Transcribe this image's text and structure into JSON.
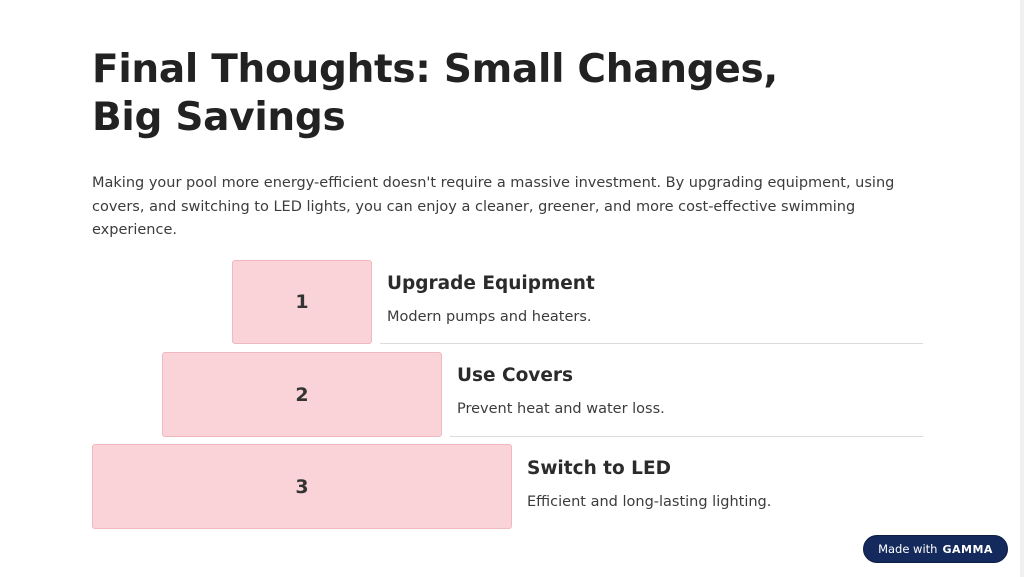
{
  "slide": {
    "title": "Final Thoughts: Small Changes, Big Savings",
    "intro": "Making your pool more energy-efficient doesn't require a massive investment. By upgrading equipment, using covers, and switching to LED lights, you can enjoy a cleaner, greener, and more cost-effective swimming experience.",
    "steps": [
      {
        "number": "1",
        "title": "Upgrade Equipment",
        "description": "Modern pumps and heaters."
      },
      {
        "number": "2",
        "title": "Use Covers",
        "description": "Prevent heat and water loss."
      },
      {
        "number": "3",
        "title": "Switch to LED",
        "description": "Efficient and long-lasting lighting."
      }
    ]
  },
  "badge": {
    "prefix": "Made with",
    "brand": "GAMMA"
  },
  "colors": {
    "step_fill": "#f9d3d7",
    "badge_bg": "#152a5c"
  }
}
